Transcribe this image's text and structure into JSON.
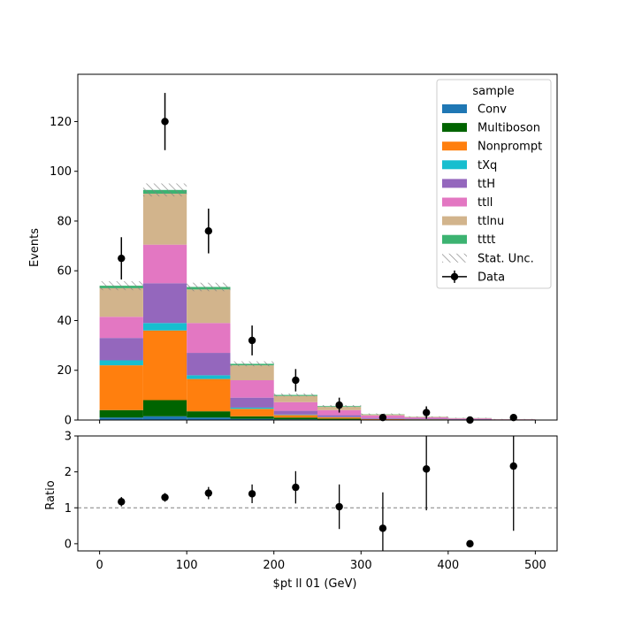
{
  "chart_data": [
    {
      "type": "bar",
      "stacked": true,
      "xlabel": "",
      "ylabel": "Events",
      "xlim": [
        -25,
        525
      ],
      "ylim": [
        0,
        139
      ],
      "yticks": [
        0,
        20,
        40,
        60,
        80,
        100,
        120
      ],
      "bin_edges": [
        0,
        50,
        100,
        150,
        200,
        250,
        300,
        350,
        400,
        450,
        500
      ],
      "series": [
        {
          "name": "Conv",
          "color": "#1f77b4",
          "values": [
            1.0,
            1.5,
            1.0,
            0.5,
            0.3,
            0.2,
            0.1,
            0.1,
            0.05,
            0.05
          ]
        },
        {
          "name": "Multiboson",
          "color": "#006400",
          "values": [
            3.0,
            6.5,
            2.5,
            1.0,
            0.7,
            0.4,
            0.1,
            0.1,
            0.05,
            0.05
          ]
        },
        {
          "name": "Nonprompt",
          "color": "#ff7f0e",
          "values": [
            18.0,
            28.0,
            13.0,
            3.0,
            1.0,
            0.5,
            0.2,
            0.1,
            0.1,
            0.05
          ]
        },
        {
          "name": "tXq",
          "color": "#17becf",
          "values": [
            2.0,
            3.0,
            1.5,
            0.5,
            0.2,
            0.1,
            0.05,
            0.05,
            0.0,
            0.0
          ]
        },
        {
          "name": "ttH",
          "color": "#9467bd",
          "values": [
            9.0,
            16.0,
            9.0,
            4.0,
            1.5,
            0.8,
            0.4,
            0.2,
            0.15,
            0.05
          ]
        },
        {
          "name": "ttll",
          "color": "#e377c2",
          "values": [
            8.5,
            15.5,
            12.0,
            7.0,
            3.5,
            2.0,
            1.0,
            0.5,
            0.3,
            0.1
          ]
        },
        {
          "name": "ttlnu",
          "color": "#d2b48c",
          "values": [
            11.5,
            20.5,
            13.5,
            6.0,
            2.5,
            1.3,
            0.4,
            0.2,
            0.1,
            0.05
          ]
        },
        {
          "name": "tttt",
          "color": "#3cb371",
          "values": [
            1.0,
            1.5,
            1.0,
            0.6,
            0.4,
            0.3,
            0.1,
            0.05,
            0.05,
            0.0
          ]
        }
      ],
      "stat_unc": {
        "name": "Stat. Unc.",
        "values": [
          1.8,
          2.6,
          1.7,
          1.0,
          0.6,
          0.45,
          0.3,
          0.2,
          0.15,
          0.1
        ]
      },
      "data": {
        "name": "Data",
        "x": [
          25,
          75,
          125,
          175,
          225,
          275,
          325,
          375,
          425,
          475
        ],
        "y": [
          65,
          120,
          76,
          32,
          16,
          6,
          1,
          3,
          0,
          1
        ],
        "err": [
          8.5,
          11.5,
          9.0,
          6.0,
          4.5,
          3.0,
          1.3,
          2.5,
          0,
          1.3
        ]
      },
      "legend": {
        "title": "sample",
        "placement": "top-right"
      }
    },
    {
      "type": "scatter",
      "xlabel": "$pt ll 01 (GeV)",
      "ylabel": "Ratio",
      "xlim": [
        -25,
        525
      ],
      "ylim": [
        -0.2,
        3
      ],
      "yticks": [
        0,
        1,
        2,
        3
      ],
      "xticks": [
        0,
        100,
        200,
        300,
        400,
        500
      ],
      "reference_line": 1,
      "x": [
        25,
        75,
        125,
        175,
        225,
        275,
        325,
        375,
        425,
        475
      ],
      "y": [
        1.17,
        1.29,
        1.41,
        1.39,
        1.57,
        1.03,
        0.43,
        2.08,
        0.0,
        2.16
      ],
      "err": [
        0.13,
        0.12,
        0.17,
        0.26,
        0.45,
        0.62,
        1.0,
        1.15,
        0,
        1.8
      ]
    }
  ]
}
